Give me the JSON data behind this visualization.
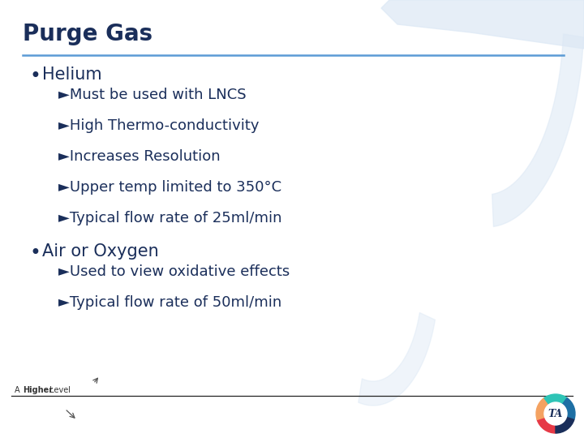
{
  "title": "Purge Gas",
  "title_color": "#1a2e5a",
  "title_fontsize": 20,
  "bg_color": "#ffffff",
  "line_color": "#5b9bd5",
  "bullet1": "Helium",
  "bullet1_color": "#1a2e5a",
  "bullet1_fontsize": 15,
  "sub_items1": [
    "►Must be used with LNCS",
    "►High Thermo-conductivity",
    "►Increases Resolution",
    "►Upper temp limited to 350°C",
    "►Typical flow rate of 25ml/min"
  ],
  "bullet2": "Air or Oxygen",
  "bullet2_color": "#1a2e5a",
  "bullet2_fontsize": 15,
  "sub_items2": [
    "►Used to view oxidative effects",
    "►Typical flow rate of 50ml/min"
  ],
  "sub_color": "#1a2e5a",
  "sub_fontsize": 13,
  "watermark_color": "#dce8f5",
  "footer_fontsize": 7,
  "ta_colors": [
    "#e63946",
    "#f4a261",
    "#2ec4b6",
    "#1d6fa4",
    "#1a2e5a"
  ]
}
